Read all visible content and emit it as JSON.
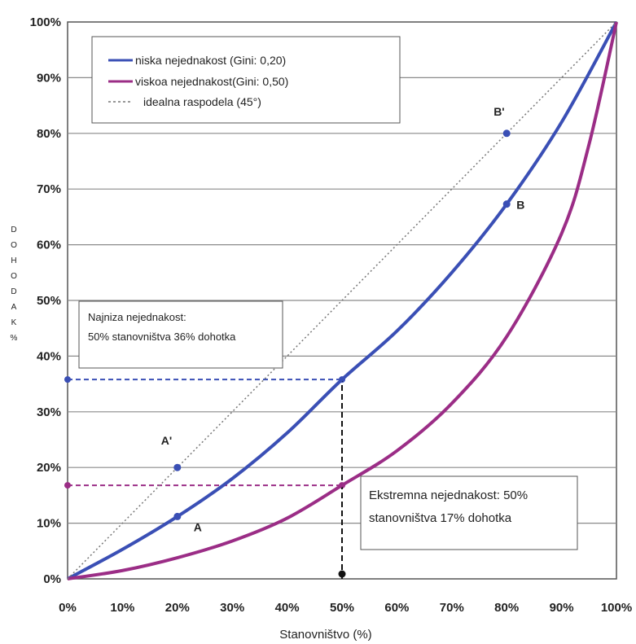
{
  "chart_data": {
    "type": "line",
    "title": "",
    "xlabel": "Stanovništvo (%)",
    "ylabel": "DOHODAK%",
    "xlim": [
      0,
      100
    ],
    "ylim": [
      0,
      100
    ],
    "x_ticks": [
      "0%",
      "10%",
      "20%",
      "30%",
      "40%",
      "50%",
      "60%",
      "70%",
      "80%",
      "90%",
      "100%"
    ],
    "y_ticks": [
      "0%",
      "10%",
      "20%",
      "30%",
      "40%",
      "50%",
      "60%",
      "70%",
      "80%",
      "90%",
      "100%"
    ],
    "grid": "horizontal",
    "legend_position": "top-left",
    "series": [
      {
        "name": "niska nejednakost (Gini: 0,20)",
        "color": "#3a4fb5",
        "x": [
          0,
          10,
          20,
          30,
          40,
          50,
          60,
          70,
          80,
          90,
          100
        ],
        "y": [
          0,
          5.3,
          11.2,
          18,
          26.2,
          35.8,
          44.5,
          55,
          67.3,
          82,
          100
        ]
      },
      {
        "name": "viskoa nejednakost(Gini: 0,50)",
        "color": "#9b2d86",
        "x": [
          0,
          10,
          20,
          30,
          40,
          50,
          60,
          70,
          80,
          90,
          95,
          100
        ],
        "y": [
          0,
          1.5,
          3.8,
          6.8,
          10.9,
          16.8,
          23,
          31.5,
          43.5,
          62,
          78,
          100
        ]
      },
      {
        "name": "idealna raspodela (45°)",
        "color": "#777777",
        "x": [
          0,
          100
        ],
        "y": [
          0,
          100
        ]
      }
    ],
    "points": [
      {
        "label": "A",
        "x": 20,
        "y": 11.2
      },
      {
        "label": "A'",
        "x": 20,
        "y": 20
      },
      {
        "label": "B",
        "x": 80,
        "y": 67.3
      },
      {
        "label": "B'",
        "x": 80,
        "y": 80
      }
    ],
    "reference_lines": [
      {
        "type": "horizontal",
        "y": 35.8,
        "x_from": 0,
        "x_to": 50,
        "color": "#3a4fb5"
      },
      {
        "type": "horizontal",
        "y": 16.8,
        "x_from": 0,
        "x_to": 50,
        "color": "#9b2d86"
      },
      {
        "type": "vertical",
        "x": 50,
        "y_from": 0,
        "y_to": 35.8,
        "color": "#111111"
      }
    ],
    "annotations": [
      {
        "lines": [
          "Najniza nejednakost:",
          "50% stanovništva 36% dohotka"
        ]
      },
      {
        "lines": [
          "Ekstremna nejednakost: 50%",
          "stanovništva 17% dohotka"
        ]
      }
    ]
  }
}
